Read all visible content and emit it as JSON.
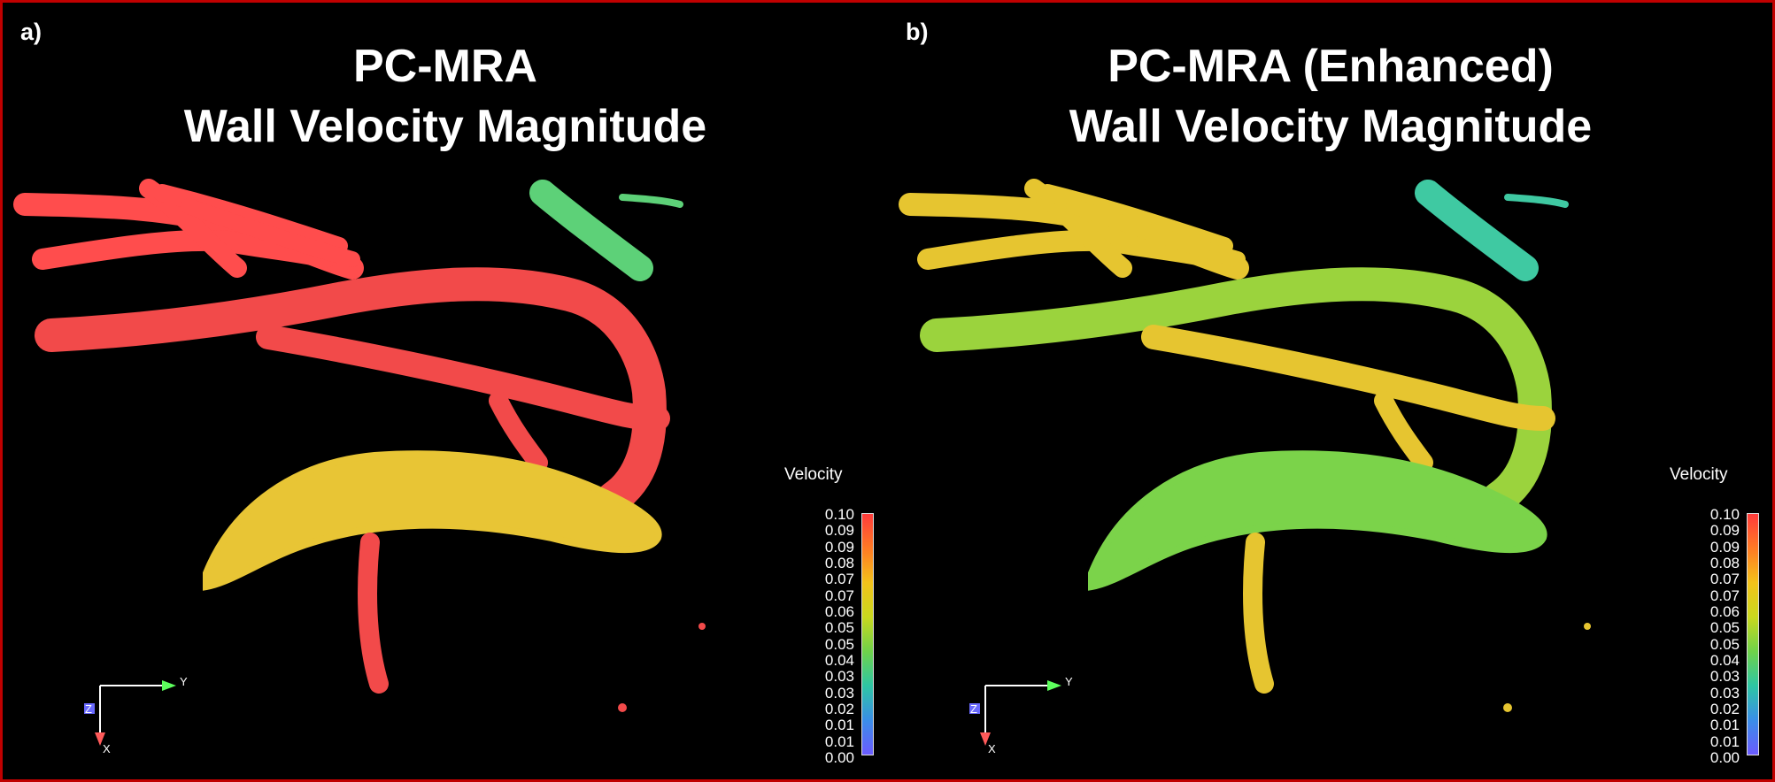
{
  "panels": [
    {
      "label": "a)",
      "title_line1": "PC-MRA",
      "title_line2": "Wall Velocity Magnitude",
      "colors": {
        "major": "#f24a4a",
        "upper": "#ff4d4d",
        "aorta": "#e8c535",
        "topright": "#5dd178"
      }
    },
    {
      "label": "b)",
      "title_line1": "PC-MRA (Enhanced)",
      "title_line2": "Wall Velocity Magnitude",
      "colors": {
        "major": "#9bd33d",
        "upper": "#e6c530",
        "aorta": "#7bd34a",
        "topright": "#3fc9a2"
      }
    }
  ],
  "legend": {
    "title": "Velocity",
    "ticks": [
      "0.10",
      "0.09",
      "0.09",
      "0.08",
      "0.07",
      "0.07",
      "0.06",
      "0.05",
      "0.05",
      "0.04",
      "0.03",
      "0.03",
      "0.02",
      "0.01",
      "0.01",
      "0.00"
    ],
    "colorscale": [
      "#ff3b3b",
      "#ff7a24",
      "#f3c21a",
      "#c9d81e",
      "#6fd24a",
      "#2ec6a4",
      "#3a8ee8",
      "#6b5bff"
    ]
  },
  "axes": {
    "y": "Y",
    "z": "Z",
    "x": "X"
  }
}
